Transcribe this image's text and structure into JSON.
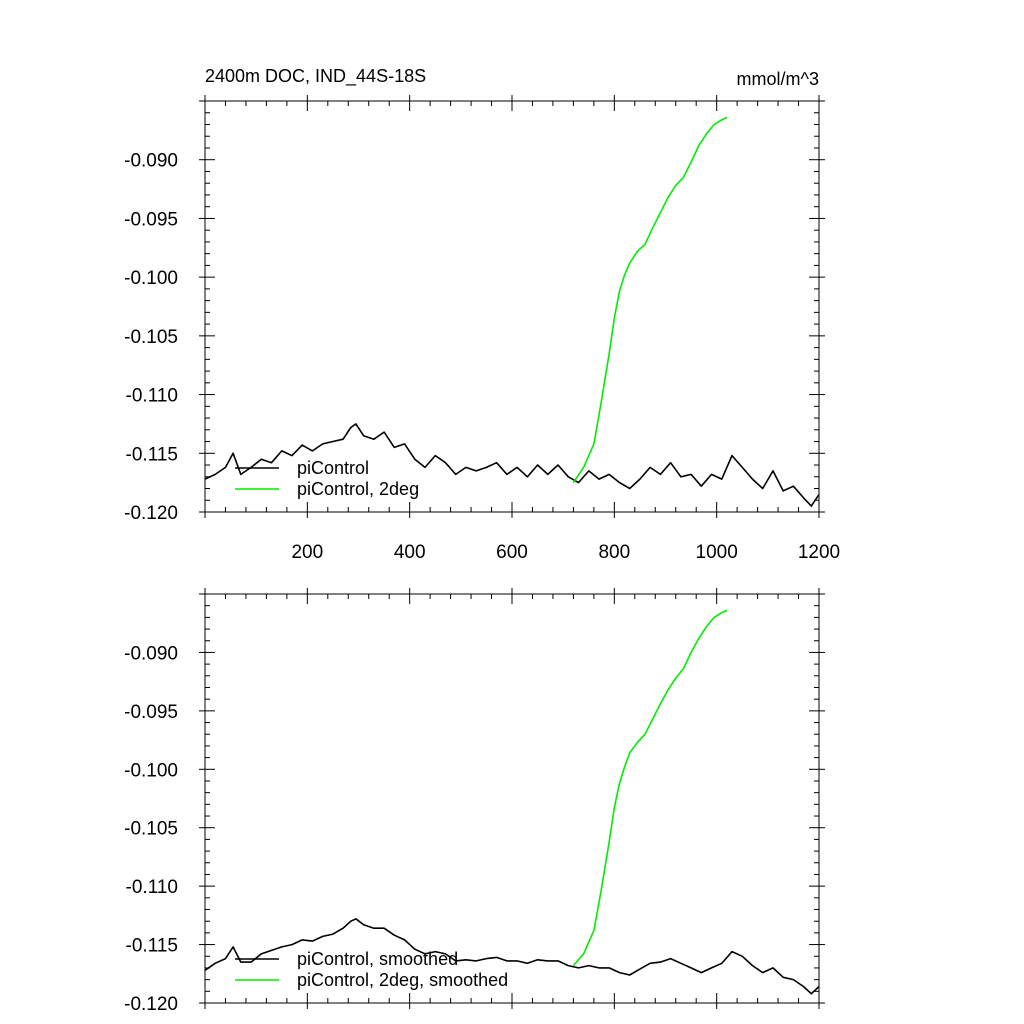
{
  "chart_data": [
    {
      "type": "line",
      "title": "2400m DOC, IND_44S-18S",
      "units": "mmol/m^3",
      "xlim": [
        0,
        1200
      ],
      "ylim": [
        -0.12,
        -0.085
      ],
      "x_ticks": [
        200,
        400,
        600,
        800,
        1000,
        1200
      ],
      "y_ticks": [
        -0.09,
        -0.095,
        -0.1,
        -0.105,
        -0.11,
        -0.115,
        -0.12
      ],
      "y_tick_labels": [
        "-0.090",
        "-0.095",
        "-0.100",
        "-0.105",
        "-0.110",
        "-0.115",
        "-0.120"
      ],
      "x_tick_labels": [
        "200",
        "400",
        "600",
        "800",
        "1000",
        "1200"
      ],
      "grid": false,
      "legend_position": "bottom-left",
      "series": [
        {
          "name": "piControl",
          "color": "#000000",
          "x": [
            0,
            20,
            40,
            55,
            70,
            90,
            110,
            130,
            150,
            170,
            190,
            210,
            230,
            250,
            270,
            285,
            295,
            310,
            330,
            350,
            370,
            390,
            410,
            430,
            450,
            470,
            490,
            510,
            530,
            550,
            570,
            590,
            610,
            630,
            650,
            670,
            690,
            710,
            730,
            750,
            770,
            790,
            810,
            830,
            850,
            870,
            890,
            910,
            930,
            950,
            970,
            990,
            1010,
            1030,
            1050,
            1070,
            1090,
            1110,
            1130,
            1150,
            1170,
            1185,
            1200
          ],
          "y": [
            -0.1172,
            -0.1168,
            -0.1162,
            -0.115,
            -0.1168,
            -0.1162,
            -0.1155,
            -0.1158,
            -0.1148,
            -0.1152,
            -0.1143,
            -0.1148,
            -0.1142,
            -0.114,
            -0.1138,
            -0.1128,
            -0.1125,
            -0.1135,
            -0.1138,
            -0.1132,
            -0.1145,
            -0.1142,
            -0.1155,
            -0.1162,
            -0.1152,
            -0.1158,
            -0.1168,
            -0.1162,
            -0.1165,
            -0.1162,
            -0.1158,
            -0.1168,
            -0.1162,
            -0.117,
            -0.116,
            -0.1168,
            -0.116,
            -0.117,
            -0.1175,
            -0.1165,
            -0.1172,
            -0.1168,
            -0.1175,
            -0.118,
            -0.1172,
            -0.1162,
            -0.1168,
            -0.1158,
            -0.117,
            -0.1168,
            -0.1178,
            -0.1168,
            -0.1172,
            -0.1152,
            -0.1162,
            -0.1172,
            -0.118,
            -0.1165,
            -0.1182,
            -0.1178,
            -0.1188,
            -0.1195,
            -0.1185
          ]
        },
        {
          "name": "piControl, 2deg",
          "color": "#00ee00",
          "x": [
            720,
            740,
            760,
            775,
            790,
            800,
            810,
            820,
            830,
            845,
            860,
            875,
            890,
            905,
            920,
            935,
            950,
            965,
            980,
            995,
            1010,
            1020
          ],
          "y": [
            -0.1175,
            -0.1162,
            -0.1142,
            -0.1105,
            -0.1065,
            -0.1035,
            -0.1012,
            -0.0998,
            -0.0988,
            -0.0978,
            -0.0972,
            -0.0958,
            -0.0945,
            -0.0932,
            -0.0922,
            -0.0915,
            -0.0902,
            -0.0888,
            -0.0878,
            -0.087,
            -0.0866,
            -0.0864
          ]
        }
      ]
    },
    {
      "type": "line",
      "xlim": [
        0,
        1200
      ],
      "ylim": [
        -0.12,
        -0.085
      ],
      "x_ticks": [
        200,
        400,
        600,
        800,
        1000,
        1200
      ],
      "y_ticks": [
        -0.09,
        -0.095,
        -0.1,
        -0.105,
        -0.11,
        -0.115,
        -0.12
      ],
      "y_tick_labels": [
        "-0.090",
        "-0.095",
        "-0.100",
        "-0.105",
        "-0.110",
        "-0.115",
        "-0.120"
      ],
      "grid": false,
      "legend_position": "bottom-left",
      "series": [
        {
          "name": "piControl, smoothed",
          "color": "#000000",
          "x": [
            0,
            20,
            40,
            55,
            70,
            90,
            110,
            130,
            150,
            170,
            190,
            210,
            230,
            250,
            270,
            285,
            295,
            310,
            330,
            350,
            370,
            390,
            410,
            430,
            450,
            470,
            490,
            510,
            530,
            550,
            570,
            590,
            610,
            630,
            650,
            670,
            690,
            710,
            730,
            750,
            770,
            790,
            810,
            830,
            850,
            870,
            890,
            910,
            930,
            950,
            970,
            990,
            1010,
            1030,
            1050,
            1070,
            1090,
            1110,
            1130,
            1150,
            1170,
            1185,
            1200
          ],
          "y": [
            -0.1172,
            -0.1166,
            -0.1162,
            -0.1152,
            -0.1165,
            -0.1165,
            -0.1158,
            -0.1155,
            -0.1152,
            -0.115,
            -0.1146,
            -0.1147,
            -0.1143,
            -0.1141,
            -0.1136,
            -0.113,
            -0.1128,
            -0.1133,
            -0.1136,
            -0.1136,
            -0.1142,
            -0.1146,
            -0.1154,
            -0.1158,
            -0.1156,
            -0.1158,
            -0.1164,
            -0.1163,
            -0.1164,
            -0.1162,
            -0.1161,
            -0.1164,
            -0.1164,
            -0.1166,
            -0.1163,
            -0.1164,
            -0.1164,
            -0.1168,
            -0.117,
            -0.1168,
            -0.117,
            -0.117,
            -0.1174,
            -0.1176,
            -0.1171,
            -0.1166,
            -0.1165,
            -0.1162,
            -0.1166,
            -0.117,
            -0.1174,
            -0.117,
            -0.1166,
            -0.1156,
            -0.116,
            -0.1168,
            -0.1174,
            -0.117,
            -0.1178,
            -0.118,
            -0.1186,
            -0.1192,
            -0.1186
          ]
        },
        {
          "name": "piControl, 2deg, smoothed",
          "color": "#00ee00",
          "x": [
            720,
            740,
            760,
            775,
            790,
            800,
            810,
            820,
            830,
            845,
            860,
            875,
            890,
            905,
            920,
            935,
            950,
            965,
            980,
            995,
            1010,
            1020
          ],
          "y": [
            -0.1168,
            -0.1158,
            -0.1138,
            -0.1102,
            -0.1062,
            -0.1033,
            -0.1012,
            -0.0998,
            -0.0986,
            -0.0977,
            -0.097,
            -0.0957,
            -0.0944,
            -0.0932,
            -0.0922,
            -0.0914,
            -0.09,
            -0.0888,
            -0.0878,
            -0.087,
            -0.0866,
            -0.0864
          ]
        }
      ]
    }
  ]
}
